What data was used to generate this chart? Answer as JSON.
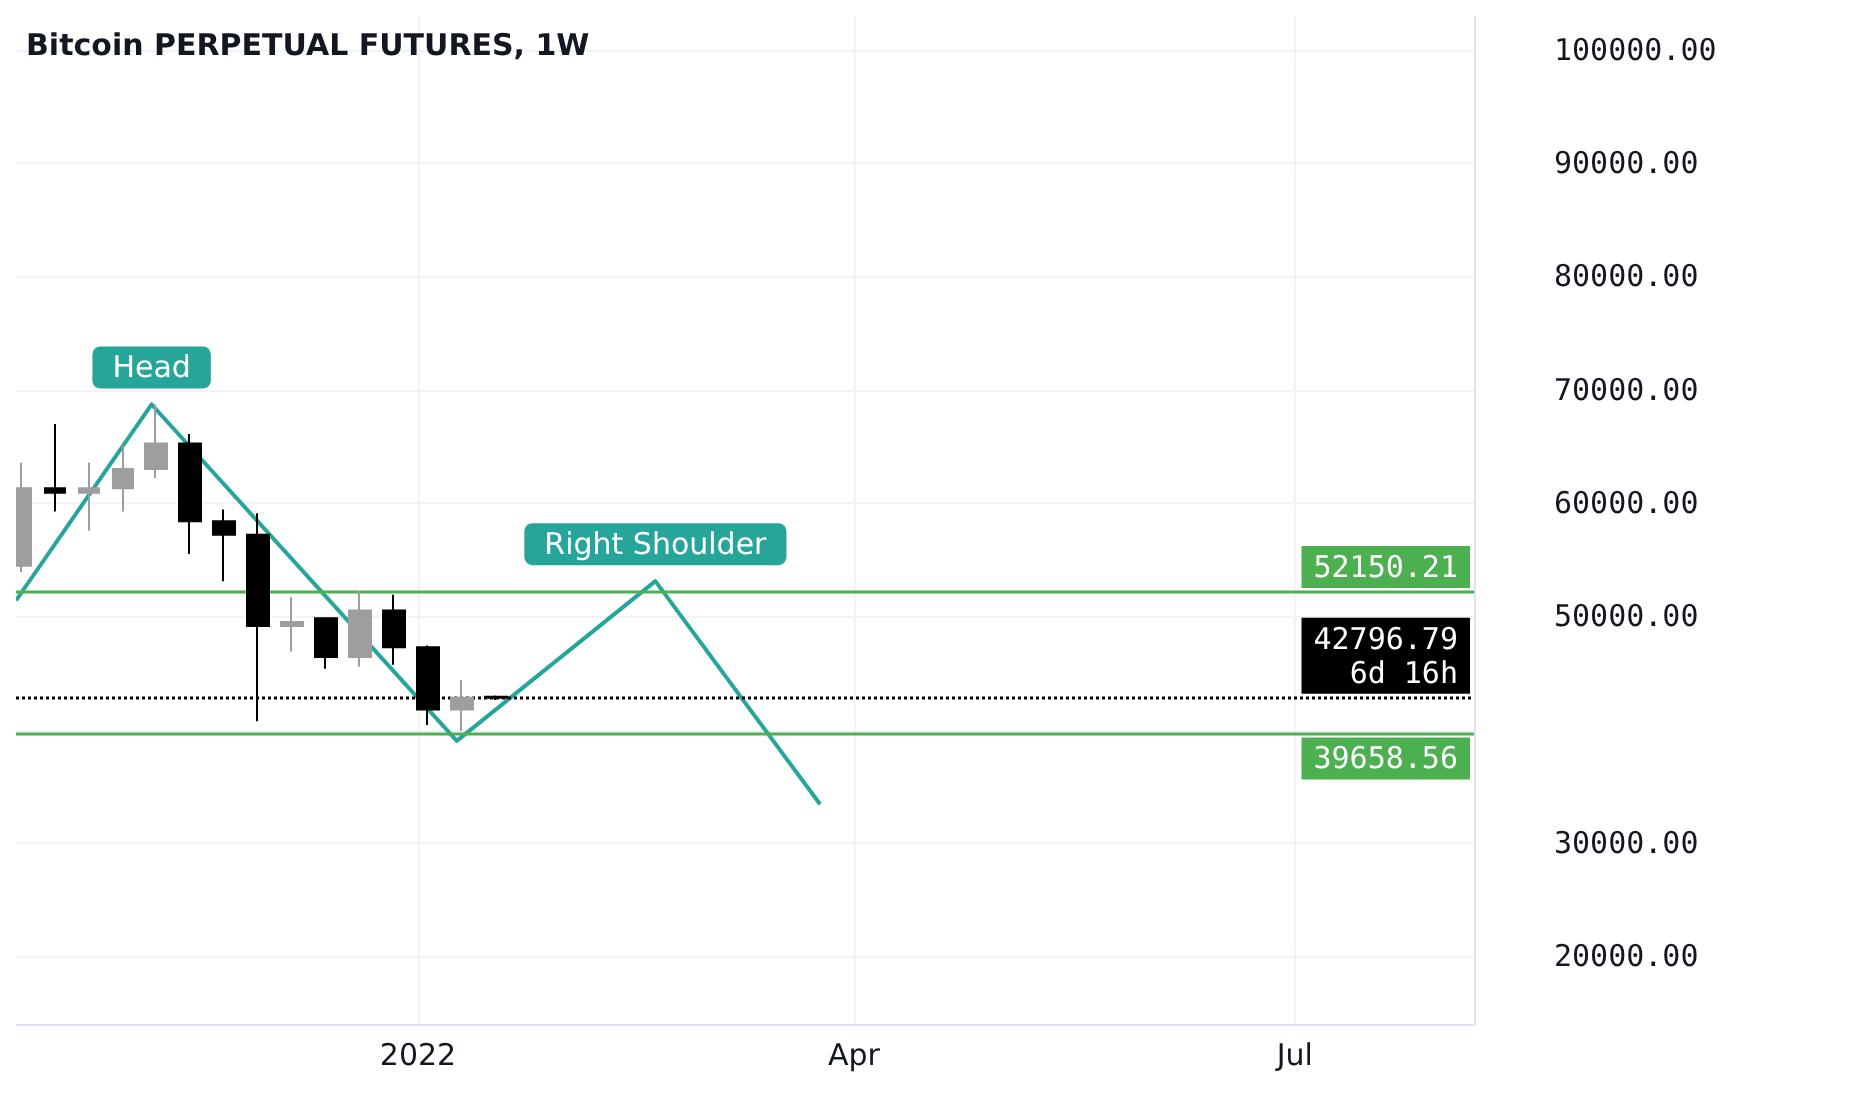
{
  "chart_data": {
    "type": "candlestick",
    "title": "Bitcoin PERPETUAL FUTURES, 1W",
    "xlim": [
      "2021-10-10",
      "2022-08-07"
    ],
    "xticks": [
      {
        "value": "2022-01-01",
        "label": "2022"
      },
      {
        "value": "2022-04-01",
        "label": "Apr"
      },
      {
        "value": "2022-07-01",
        "label": "Jul"
      }
    ],
    "ylim": [
      14000,
      103000
    ],
    "yticks": [
      {
        "value": 20000,
        "label": "20000.00"
      },
      {
        "value": 30000,
        "label": "30000.00"
      },
      {
        "value": 40000,
        "label": null
      },
      {
        "value": 50000,
        "label": "50000.00"
      },
      {
        "value": 60000,
        "label": "60000.00"
      },
      {
        "value": 70000,
        "label": "70000.00"
      },
      {
        "value": 80000,
        "label": "80000.00"
      },
      {
        "value": 90000,
        "label": "90000.00"
      },
      {
        "value": 100000,
        "label": "100000.00"
      }
    ],
    "grid": true,
    "series": [
      {
        "x": [
          "2021-10-11",
          "2021-10-18",
          "2021-10-25",
          "2021-11-01",
          "2021-11-08",
          "2021-11-15",
          "2021-11-22",
          "2021-11-29",
          "2021-12-06",
          "2021-12-13",
          "2021-12-20",
          "2021-12-27",
          "2022-01-03",
          "2022-01-10",
          "2022-01-17"
        ],
        "ohlc": [
          [
            54460,
            63550,
            53900,
            61300
          ],
          [
            61300,
            66980,
            59260,
            60900
          ],
          [
            60900,
            63550,
            57550,
            61300
          ],
          [
            61300,
            65100,
            59260,
            63000
          ],
          [
            63000,
            68700,
            62180,
            65260
          ],
          [
            65260,
            66100,
            55490,
            58400
          ],
          [
            58400,
            59430,
            53090,
            57200
          ],
          [
            57200,
            59090,
            40740,
            49140
          ],
          [
            49140,
            51700,
            46900,
            49500
          ],
          [
            49830,
            49900,
            45370,
            46400
          ],
          [
            46400,
            52230,
            45540,
            50510
          ],
          [
            50510,
            51890,
            45710,
            47260
          ],
          [
            47260,
            47430,
            40400,
            41770
          ],
          [
            41770,
            44340,
            39880,
            42800
          ],
          [
            42900,
            43000,
            42600,
            42796.79
          ]
        ],
        "colors": [
          "#9e9e9e",
          "#000000",
          "#9e9e9e",
          "#9e9e9e",
          "#9e9e9e",
          "#000000",
          "#000000",
          "#000000",
          "#9e9e9e",
          "#000000",
          "#9e9e9e",
          "#000000",
          "#000000",
          "#9e9e9e",
          "#000000"
        ]
      },
      {
        "type": "line",
        "color": "#26a69a",
        "x": [
          "2021-10-10",
          "2021-11-07",
          "2022-01-09",
          "2022-02-19",
          "2022-03-25"
        ],
        "values": [
          51400,
          68700,
          39000,
          53100,
          33400
        ]
      }
    ],
    "ref_lines": [
      {
        "axis": "y",
        "value": 52150.21,
        "label": "52150.21",
        "color": "#4caf50",
        "line_style": "solid"
      },
      {
        "axis": "y",
        "value": 42796.79,
        "label": "42796.79\n6d 16h",
        "color": "#000000",
        "line_style": "dotted"
      },
      {
        "axis": "y",
        "value": 39658.56,
        "label": "39658.56",
        "color": "#4caf50",
        "line_style": "solid"
      }
    ],
    "annotations": [
      "Head",
      "Right Shoulder"
    ]
  }
}
